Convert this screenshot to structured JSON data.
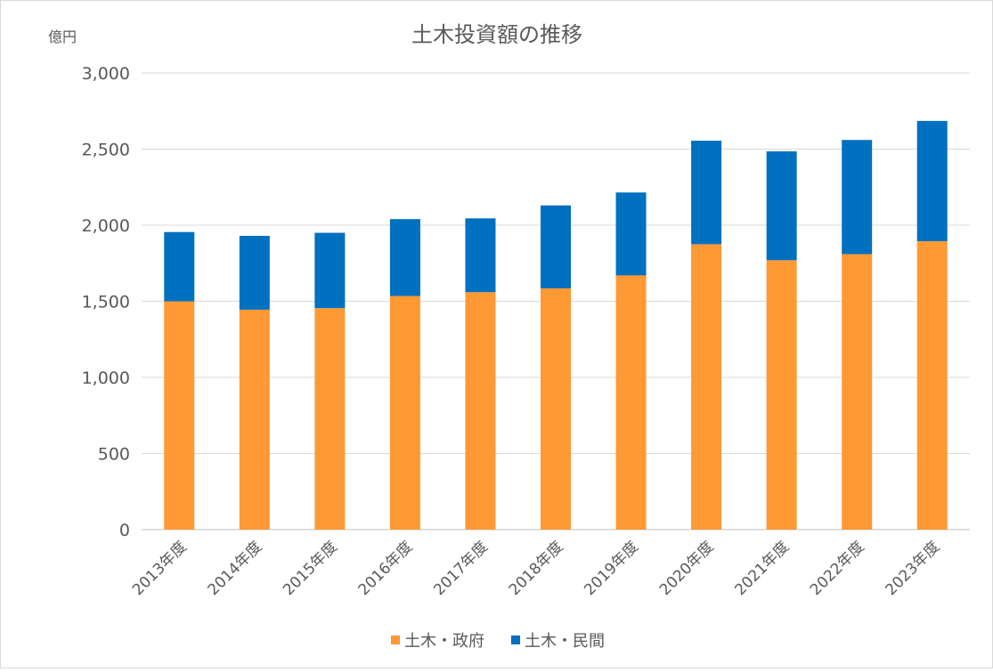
{
  "chart_data": {
    "type": "bar",
    "stacked": true,
    "title": "土木投資額の推移",
    "unit_label": "億円",
    "categories": [
      "2013年度",
      "2014年度",
      "2015年度",
      "2016年度",
      "2017年度",
      "2018年度",
      "2019年度",
      "2020年度",
      "2021年度",
      "2022年度",
      "2023年度"
    ],
    "series": [
      {
        "name": "土木・政府",
        "color": "#FF9933",
        "values": [
          1500,
          1445,
          1455,
          1535,
          1560,
          1585,
          1670,
          1875,
          1770,
          1810,
          1895
        ]
      },
      {
        "name": "土木・民間",
        "color": "#0070C0",
        "values": [
          455,
          485,
          495,
          505,
          485,
          545,
          545,
          680,
          715,
          750,
          790
        ]
      }
    ],
    "ylim": [
      0,
      3000
    ],
    "yticks": [
      0,
      500,
      1000,
      1500,
      2000,
      2500,
      3000
    ],
    "ytick_labels": [
      "0",
      "500",
      "1,000",
      "1,500",
      "2,000",
      "2,500",
      "3,000"
    ],
    "grid": true,
    "legend_position": "bottom"
  }
}
